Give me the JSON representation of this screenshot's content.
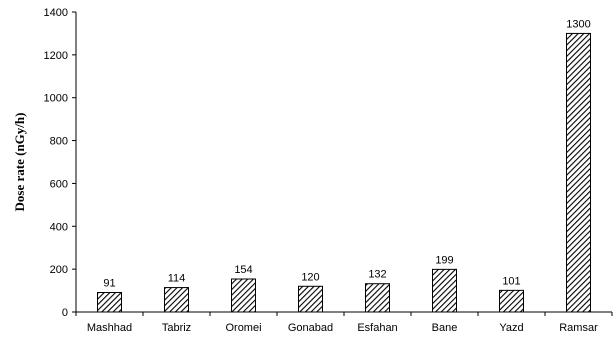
{
  "chart_data": {
    "type": "bar",
    "title": "",
    "xlabel": "",
    "ylabel": "Dose rate (nGy/h)",
    "categories": [
      "Mashhad",
      "Tabriz",
      "Oromei",
      "Gonabad",
      "Esfahan",
      "Bane",
      "Yazd",
      "Ramsar"
    ],
    "values": [
      91,
      114,
      154,
      120,
      132,
      199,
      101,
      1300
    ],
    "data_labels": [
      "91",
      "114",
      "154",
      "120",
      "132",
      "199",
      "101",
      "1300"
    ],
    "ylim": [
      0,
      1400
    ],
    "yticks": [
      "0",
      "200",
      "400",
      "600",
      "800",
      "1000",
      "1200",
      "1400"
    ],
    "ytick_values": [
      0,
      200,
      400,
      600,
      800,
      1000,
      1200,
      1400
    ],
    "grid": false,
    "legend": "none",
    "bar_fill": "hatched",
    "colors": {
      "bar_stroke": "#000000",
      "hatch": "#000000",
      "axis": "#000000"
    }
  }
}
